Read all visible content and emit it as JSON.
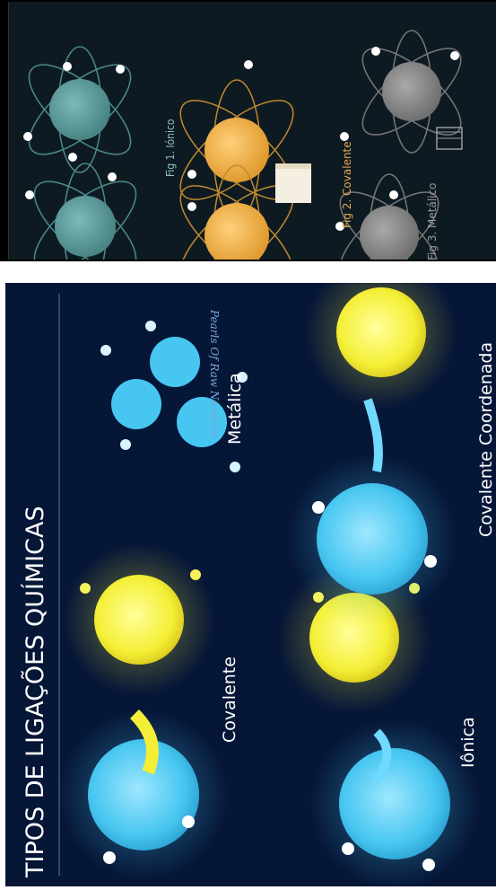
{
  "poster": {
    "title": "TIPOS DE LIGAÇÕES QUÍMICAS",
    "labels": {
      "covalente": "Covalente",
      "ionica": "Iônica",
      "metalica": "Metálica",
      "covalente_coordenada": "Covalente Coordenada"
    },
    "watermark": "Pearls Of Raw Nerdism"
  },
  "figures": {
    "fig1": "Fig 1. Iónico",
    "fig2": "Fig 2. Covalente",
    "fig3": "Fig 3. Metálico"
  },
  "colors": {
    "ionic_atom": "#5d9c9c",
    "covalent_atom": "#f1b24a",
    "metallic_atom": "#8a8a8a",
    "poster_bg": "#061637",
    "poster_blue": "#46c6f0",
    "poster_yellow": "#f4ef36",
    "poster_title": "#ffffff"
  }
}
